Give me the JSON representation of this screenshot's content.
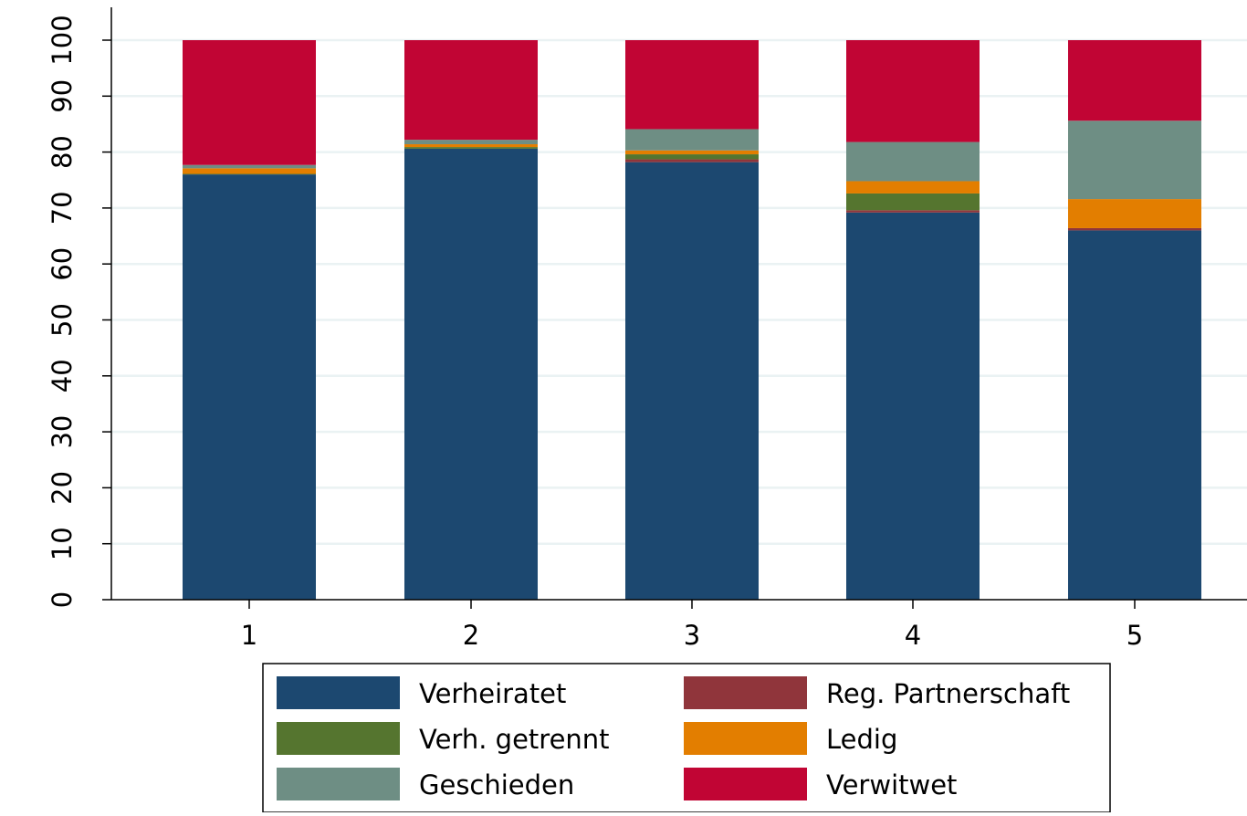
{
  "chart_data": {
    "type": "bar",
    "stacked": true,
    "categories": [
      "1",
      "2",
      "3",
      "4",
      "5"
    ],
    "yticks": [
      "0",
      "10",
      "20",
      "30",
      "40",
      "50",
      "60",
      "70",
      "80",
      "90",
      "100"
    ],
    "ylim": [
      0,
      100
    ],
    "grid": true,
    "legend_position": "bottom",
    "series": [
      {
        "name": "Verheiratet",
        "color": "#1c4870",
        "values": [
          76.0,
          80.6,
          78.2,
          69.2,
          66.0
        ]
      },
      {
        "name": "Reg. Partnerschaft",
        "color": "#90353b",
        "values": [
          0.0,
          0.0,
          0.5,
          0.4,
          0.4
        ]
      },
      {
        "name": "Verh. getrennt",
        "color": "#55752f",
        "values": [
          0.1,
          0.3,
          0.9,
          3.0,
          0.0
        ]
      },
      {
        "name": "Ledig",
        "color": "#e37e00",
        "values": [
          1.0,
          0.5,
          0.7,
          2.2,
          5.2
        ]
      },
      {
        "name": "Geschieden",
        "color": "#6e8e84",
        "values": [
          0.6,
          0.8,
          3.8,
          7.0,
          14.0
        ]
      },
      {
        "name": "Verwitwet",
        "color": "#c10534",
        "values": [
          22.3,
          17.8,
          15.9,
          18.2,
          14.4
        ]
      }
    ],
    "legend_order": [
      "Verheiratet",
      "Reg. Partnerschaft",
      "Verh. getrennt",
      "Ledig",
      "Geschieden",
      "Verwitwet"
    ]
  }
}
